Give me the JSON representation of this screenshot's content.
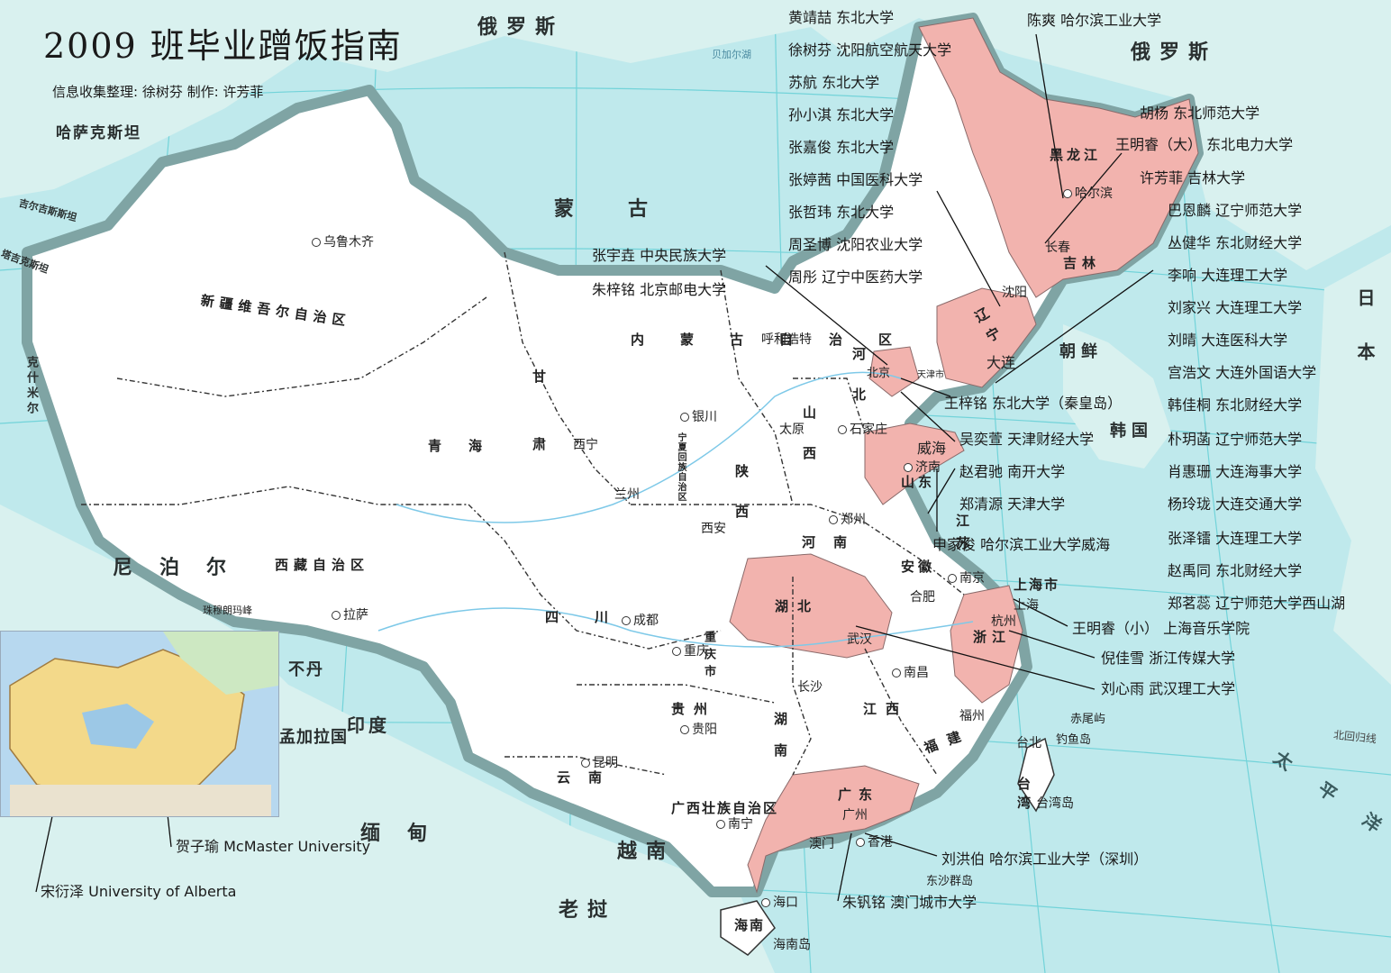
{
  "title": "2009 班毕业蹭饭指南",
  "subtitle": "信息收集整理: 徐树芬 制作: 许芳菲",
  "colors": {
    "sea": "#bfe9ec",
    "land": "#ffffff",
    "highlight": "#f2b3ae",
    "border": "#7fa4a4",
    "grid": "#6fd0d6"
  },
  "countries": [
    "俄罗斯",
    "俄罗斯",
    "蒙古",
    "哈萨克斯坦",
    "吉尔吉斯斯坦",
    "塔吉克斯坦",
    "尼泊尔",
    "不丹",
    "印度",
    "孟加拉国",
    "缅甸",
    "老挝",
    "越南",
    "朝鲜",
    "韩国",
    "日本",
    "克什米尔",
    "太平洋"
  ],
  "provinces": [
    "新疆维吾尔自治区",
    "西藏自治区",
    "青海",
    "甘肃",
    "内蒙古自治区",
    "宁夏回族自治区",
    "陕西",
    "山西",
    "河北",
    "河南",
    "山东",
    "四川",
    "重庆市",
    "湖北",
    "湖南",
    "贵州",
    "云南",
    "广西壮族自治区",
    "广东",
    "江西",
    "福建",
    "浙江",
    "安徽",
    "江苏",
    "上海市",
    "辽宁",
    "吉林",
    "黑龙江",
    "台湾",
    "海南"
  ],
  "cities": [
    "乌鲁木齐",
    "拉萨",
    "西宁",
    "兰州",
    "银川",
    "呼和浩特",
    "太原",
    "石家庄",
    "北京",
    "天津市",
    "西安",
    "郑州",
    "济南",
    "成都",
    "重庆",
    "武汉",
    "长沙",
    "南昌",
    "合肥",
    "南京",
    "上海",
    "杭州",
    "福州",
    "台北",
    "贵阳",
    "昆明",
    "南宁",
    "广州",
    "香港",
    "澳门",
    "海口",
    "沈阳",
    "长春",
    "哈尔滨",
    "大连",
    "威海"
  ],
  "islands": [
    "赤尾屿",
    "钓鱼岛",
    "台湾岛",
    "东沙群岛",
    "海南岛"
  ],
  "misc_labels": [
    "北回归线",
    "珠穆朗玛峰",
    "贝加尔湖"
  ],
  "classmates": [
    {
      "name": "黄靖喆",
      "school": "东北大学"
    },
    {
      "name": "徐树芬",
      "school": "沈阳航空航天大学"
    },
    {
      "name": "苏航",
      "school": "东北大学"
    },
    {
      "name": "孙小淇",
      "school": "东北大学"
    },
    {
      "name": "张嘉俊",
      "school": "东北大学"
    },
    {
      "name": "张婷茜",
      "school": "中国医科大学"
    },
    {
      "name": "张哲玮",
      "school": "东北大学"
    },
    {
      "name": "周圣博",
      "school": "沈阳农业大学"
    },
    {
      "name": "周彤",
      "school": "辽宁中医药大学"
    },
    {
      "name": "陈爽",
      "school": "哈尔滨工业大学"
    },
    {
      "name": "胡杨",
      "school": "东北师范大学"
    },
    {
      "name": "王明睿（大）",
      "school": "东北电力大学"
    },
    {
      "name": "许芳菲",
      "school": "吉林大学"
    },
    {
      "name": "巴恩麟",
      "school": "辽宁师范大学"
    },
    {
      "name": "丛健华",
      "school": "东北财经大学"
    },
    {
      "name": "李响",
      "school": "大连理工大学"
    },
    {
      "name": "刘家兴",
      "school": "大连理工大学"
    },
    {
      "name": "刘晴",
      "school": "大连医科大学"
    },
    {
      "name": "宫浩文",
      "school": "大连外国语大学"
    },
    {
      "name": "韩佳桐",
      "school": "东北财经大学"
    },
    {
      "name": "朴玥菡",
      "school": "辽宁师范大学"
    },
    {
      "name": "肖惠珊",
      "school": "大连海事大学"
    },
    {
      "name": "杨玲珑",
      "school": "大连交通大学"
    },
    {
      "name": "张泽镭",
      "school": "大连理工大学"
    },
    {
      "name": "赵禹同",
      "school": "东北财经大学"
    },
    {
      "name": "郑茗蕊",
      "school": "辽宁师范大学西山湖"
    },
    {
      "name": "张宇垚",
      "school": "中央民族大学"
    },
    {
      "name": "朱梓铭",
      "school": "北京邮电大学"
    },
    {
      "name": "王梓铭",
      "school": "东北大学（秦皇岛）"
    },
    {
      "name": "吴奕萱",
      "school": "天津财经大学"
    },
    {
      "name": "赵君驰",
      "school": "南开大学"
    },
    {
      "name": "郑清源",
      "school": "天津大学"
    },
    {
      "name": "申家俊",
      "school": "哈尔滨工业大学威海"
    },
    {
      "name": "王明睿（小）",
      "school": "上海音乐学院"
    },
    {
      "name": "倪佳雪",
      "school": "浙江传媒大学"
    },
    {
      "name": "刘心雨",
      "school": "武汉理工大学"
    },
    {
      "name": "刘洪伯",
      "school": "哈尔滨工业大学（深圳）"
    },
    {
      "name": "朱钒铭",
      "school": "澳门城市大学"
    },
    {
      "name": "贺子瑜",
      "school": "McMaster University"
    },
    {
      "name": "宋衍泽",
      "school": "University of Alberta"
    }
  ]
}
